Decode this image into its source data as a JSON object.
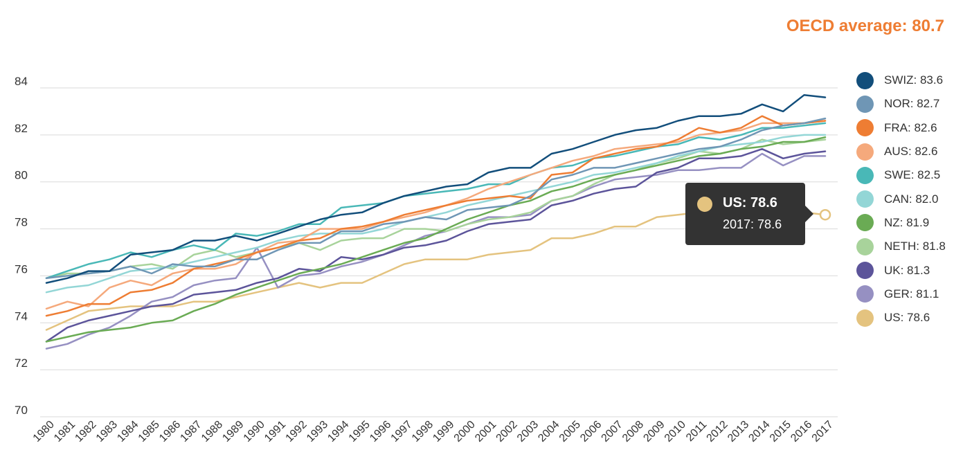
{
  "header": {
    "oecd_average": "OECD average: 80.7"
  },
  "tooltip": {
    "title": "US: 78.6",
    "subtitle": "2017: 78.6",
    "color": "#e4c37f"
  },
  "chart_data": {
    "type": "line",
    "xlabel": "",
    "ylabel": "",
    "ylim": [
      70,
      84
    ],
    "yticks": [
      70,
      72,
      74,
      76,
      78,
      80,
      82,
      84
    ],
    "grid": true,
    "legend_position": "right",
    "x": [
      "1980",
      "1981",
      "1982",
      "1983",
      "1984",
      "1985",
      "1986",
      "1987",
      "1988",
      "1989",
      "1990",
      "1991",
      "1992",
      "1993",
      "1994",
      "1995",
      "1996",
      "1997",
      "1998",
      "1999",
      "2000",
      "2001",
      "2002",
      "2003",
      "2004",
      "2005",
      "2006",
      "2007",
      "2008",
      "2009",
      "2010",
      "2011",
      "2012",
      "2013",
      "2014",
      "2015",
      "2016",
      "2017"
    ],
    "series": [
      {
        "name": "SWIZ",
        "legend": "SWIZ: 83.6",
        "color": "#124e7b",
        "values": [
          75.7,
          75.9,
          76.2,
          76.2,
          76.9,
          77.0,
          77.1,
          77.5,
          77.5,
          77.7,
          77.5,
          77.8,
          78.1,
          78.4,
          78.6,
          78.7,
          79.1,
          79.4,
          79.6,
          79.8,
          79.9,
          80.4,
          80.6,
          80.6,
          81.2,
          81.4,
          81.7,
          82.0,
          82.2,
          82.3,
          82.6,
          82.8,
          82.8,
          82.9,
          83.3,
          83.0,
          83.7,
          83.6
        ]
      },
      {
        "name": "NOR",
        "legend": "NOR: 82.7",
        "color": "#6f96b5",
        "values": [
          75.9,
          76.0,
          76.1,
          76.2,
          76.4,
          76.1,
          76.5,
          76.4,
          76.4,
          76.7,
          76.7,
          77.1,
          77.4,
          77.4,
          77.9,
          77.9,
          78.2,
          78.3,
          78.5,
          78.4,
          78.8,
          78.9,
          79.0,
          79.4,
          80.1,
          80.3,
          80.6,
          80.6,
          80.8,
          81.0,
          81.2,
          81.4,
          81.5,
          81.8,
          82.2,
          82.4,
          82.5,
          82.7
        ]
      },
      {
        "name": "FRA",
        "legend": "FRA: 82.6",
        "color": "#ee7d33",
        "values": [
          74.3,
          74.5,
          74.8,
          74.8,
          75.3,
          75.4,
          75.7,
          76.3,
          76.5,
          76.7,
          77.0,
          77.2,
          77.5,
          77.6,
          78.0,
          78.1,
          78.3,
          78.6,
          78.8,
          79.0,
          79.2,
          79.3,
          79.4,
          79.3,
          80.3,
          80.4,
          81.0,
          81.2,
          81.4,
          81.5,
          81.8,
          82.3,
          82.1,
          82.3,
          82.8,
          82.4,
          82.5,
          82.6
        ]
      },
      {
        "name": "AUS",
        "legend": "AUS: 82.6",
        "color": "#f5a97c",
        "values": [
          74.6,
          74.9,
          74.7,
          75.5,
          75.8,
          75.6,
          76.1,
          76.3,
          76.3,
          76.5,
          77.0,
          77.4,
          77.5,
          78.0,
          78.0,
          78.0,
          78.3,
          78.5,
          78.7,
          79.0,
          79.3,
          79.7,
          80.0,
          80.3,
          80.6,
          80.9,
          81.1,
          81.4,
          81.5,
          81.6,
          81.7,
          82.0,
          82.1,
          82.2,
          82.5,
          82.5,
          82.5,
          82.6
        ]
      },
      {
        "name": "SWE",
        "legend": "SWE: 82.5",
        "color": "#49b8b7",
        "values": [
          75.9,
          76.2,
          76.5,
          76.7,
          77.0,
          76.8,
          77.1,
          77.3,
          77.1,
          77.8,
          77.7,
          77.9,
          78.2,
          78.2,
          78.9,
          79.0,
          79.1,
          79.4,
          79.5,
          79.6,
          79.7,
          79.9,
          79.9,
          80.3,
          80.6,
          80.7,
          81.0,
          81.1,
          81.3,
          81.5,
          81.6,
          81.9,
          81.8,
          82.0,
          82.3,
          82.3,
          82.4,
          82.5
        ]
      },
      {
        "name": "CAN",
        "legend": "CAN: 82.0",
        "color": "#93d6d6",
        "values": [
          75.3,
          75.5,
          75.6,
          75.9,
          76.2,
          76.3,
          76.4,
          76.6,
          76.8,
          77.0,
          77.2,
          77.5,
          77.7,
          77.8,
          77.8,
          77.8,
          78.0,
          78.3,
          78.5,
          78.7,
          79.0,
          79.2,
          79.4,
          79.6,
          79.8,
          80.0,
          80.3,
          80.4,
          80.6,
          80.8,
          81.1,
          81.3,
          81.5,
          81.6,
          81.7,
          81.9,
          82.0,
          82.0
        ]
      },
      {
        "name": "NZ",
        "legend": "NZ: 81.9",
        "color": "#6aab54",
        "values": [
          73.2,
          73.4,
          73.6,
          73.7,
          73.8,
          74.0,
          74.1,
          74.5,
          74.8,
          75.2,
          75.5,
          75.8,
          76.1,
          76.3,
          76.5,
          76.8,
          77.1,
          77.4,
          77.6,
          78.0,
          78.4,
          78.7,
          79.0,
          79.2,
          79.6,
          79.8,
          80.1,
          80.3,
          80.5,
          80.7,
          80.9,
          81.1,
          81.2,
          81.4,
          81.5,
          81.7,
          81.7,
          81.9
        ]
      },
      {
        "name": "NETH",
        "legend": "NETH: 81.8",
        "color": "#a8d39b",
        "values": [
          75.9,
          76.1,
          76.1,
          76.2,
          76.4,
          76.5,
          76.3,
          76.9,
          77.1,
          76.8,
          77.0,
          77.2,
          77.4,
          77.1,
          77.5,
          77.6,
          77.6,
          78.0,
          78.0,
          77.9,
          78.2,
          78.4,
          78.5,
          78.7,
          79.2,
          79.4,
          79.9,
          80.3,
          80.5,
          80.8,
          81.0,
          81.3,
          81.2,
          81.4,
          81.8,
          81.6,
          81.7,
          81.8
        ]
      },
      {
        "name": "UK",
        "legend": "UK: 81.3",
        "color": "#5c549a",
        "values": [
          73.2,
          73.8,
          74.1,
          74.3,
          74.5,
          74.7,
          74.8,
          75.2,
          75.3,
          75.4,
          75.7,
          75.9,
          76.3,
          76.2,
          76.8,
          76.7,
          76.9,
          77.2,
          77.3,
          77.5,
          77.9,
          78.2,
          78.3,
          78.4,
          79.0,
          79.2,
          79.5,
          79.7,
          79.8,
          80.4,
          80.6,
          81.0,
          81.0,
          81.1,
          81.4,
          81.0,
          81.2,
          81.3
        ]
      },
      {
        "name": "GER",
        "legend": "GER: 81.1",
        "color": "#9690c2",
        "values": [
          72.9,
          73.1,
          73.5,
          73.8,
          74.3,
          74.9,
          75.1,
          75.6,
          75.8,
          75.9,
          77.2,
          75.5,
          76.0,
          76.1,
          76.4,
          76.6,
          76.9,
          77.3,
          77.7,
          77.9,
          78.2,
          78.5,
          78.5,
          78.6,
          79.2,
          79.4,
          79.8,
          80.1,
          80.2,
          80.3,
          80.5,
          80.5,
          80.6,
          80.6,
          81.2,
          80.7,
          81.1,
          81.1
        ]
      },
      {
        "name": "US",
        "legend": "US: 78.6",
        "color": "#e4c37f",
        "values": [
          73.7,
          74.1,
          74.5,
          74.6,
          74.7,
          74.7,
          74.7,
          74.9,
          74.9,
          75.1,
          75.3,
          75.5,
          75.7,
          75.5,
          75.7,
          75.7,
          76.1,
          76.5,
          76.7,
          76.7,
          76.7,
          76.9,
          77.0,
          77.1,
          77.6,
          77.6,
          77.8,
          78.1,
          78.1,
          78.5,
          78.6,
          78.7,
          78.8,
          78.8,
          78.9,
          78.7,
          78.7,
          78.6
        ]
      }
    ],
    "highlight": {
      "series": "US",
      "x": "2017",
      "y": 78.6
    }
  }
}
